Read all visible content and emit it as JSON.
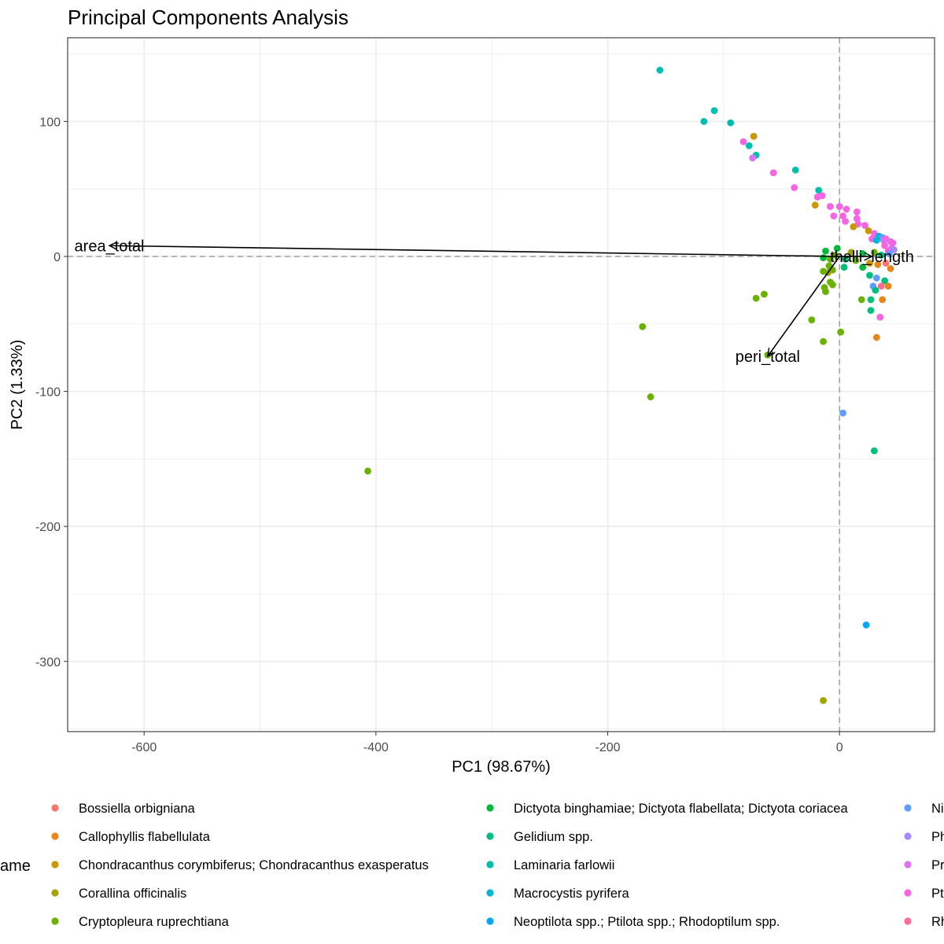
{
  "chart_data": {
    "type": "scatter",
    "title": "Principal Components Analysis",
    "xlabel": "PC1 (98.67%)",
    "ylabel": "PC2 (1.33%)",
    "xlim": [
      -666,
      82
    ],
    "ylim": [
      -352,
      162
    ],
    "xticks": [
      -600,
      -400,
      -200,
      0
    ],
    "yticks": [
      100,
      0,
      -100,
      -200,
      -300
    ],
    "grid": true,
    "reference_lines": {
      "x": 0,
      "y": 0,
      "style": "dashed"
    },
    "legend_title": "ame",
    "legend_position": "bottom",
    "legend": [
      {
        "name": "Bossiella orbigniana",
        "color": "#F8766D"
      },
      {
        "name": "Callophyllis flabellulata",
        "color": "#E7861B"
      },
      {
        "name": "Chondracanthus corymbiferus; Chondracanthus exasperatus",
        "color": "#C99800"
      },
      {
        "name": "Corallina officinalis",
        "color": "#A3A500"
      },
      {
        "name": "Cryptopleura ruprechtiana",
        "color": "#6BB100"
      },
      {
        "name": "Dictyota binghamiae; Dictyota flabellata; Dictyota coriacea",
        "color": "#00BA38"
      },
      {
        "name": "Gelidium spp.",
        "color": "#00BF7D"
      },
      {
        "name": "Laminaria farlowii",
        "color": "#00BFAE"
      },
      {
        "name": "Macrocystis pyrifera",
        "color": "#00B5D6"
      },
      {
        "name": "Neoptilota spp.; Ptilota spp.; Rhodoptilum spp.",
        "color": "#00A5FF"
      },
      {
        "name": "Ni",
        "color": "#619CFF"
      },
      {
        "name": "Ph",
        "color": "#A58AFF"
      },
      {
        "name": "Pr",
        "color": "#DF70F8"
      },
      {
        "name": "Pt",
        "color": "#F564E3"
      },
      {
        "name": "Rh",
        "color": "#FF6C91"
      }
    ],
    "loadings": [
      {
        "name": "area_total",
        "x": -630,
        "y": 8
      },
      {
        "name": "peri_total",
        "x": -62,
        "y": -74
      },
      {
        "name": "thalli_length",
        "x": 28,
        "y": 0
      }
    ],
    "points": [
      {
        "x": -155,
        "y": 138,
        "series": 7
      },
      {
        "x": -108,
        "y": 108,
        "series": 7
      },
      {
        "x": -117,
        "y": 100,
        "series": 7
      },
      {
        "x": -94,
        "y": 99,
        "series": 7
      },
      {
        "x": -74,
        "y": 89,
        "series": 2
      },
      {
        "x": -83,
        "y": 85,
        "series": 13
      },
      {
        "x": -78,
        "y": 82,
        "series": 7
      },
      {
        "x": -72,
        "y": 75,
        "series": 7
      },
      {
        "x": -75,
        "y": 73,
        "series": 12
      },
      {
        "x": -38,
        "y": 64,
        "series": 7
      },
      {
        "x": -57,
        "y": 62,
        "series": 13
      },
      {
        "x": -39,
        "y": 51,
        "series": 13
      },
      {
        "x": -18,
        "y": 49,
        "series": 7
      },
      {
        "x": -19,
        "y": 44,
        "series": 13
      },
      {
        "x": -15,
        "y": 45,
        "series": 13
      },
      {
        "x": -21,
        "y": 38,
        "series": 2
      },
      {
        "x": -8,
        "y": 37,
        "series": 13
      },
      {
        "x": 0,
        "y": 37,
        "series": 13
      },
      {
        "x": 6,
        "y": 35,
        "series": 13
      },
      {
        "x": 15,
        "y": 33,
        "series": 13
      },
      {
        "x": -5,
        "y": 30,
        "series": 13
      },
      {
        "x": 3,
        "y": 30,
        "series": 13
      },
      {
        "x": 15,
        "y": 28,
        "series": 13
      },
      {
        "x": 5,
        "y": 26,
        "series": 13
      },
      {
        "x": 16,
        "y": 24,
        "series": 13
      },
      {
        "x": 12,
        "y": 22,
        "series": 2
      },
      {
        "x": 22,
        "y": 23,
        "series": 13
      },
      {
        "x": 25,
        "y": 19,
        "series": 2
      },
      {
        "x": 30,
        "y": 17,
        "series": 13
      },
      {
        "x": 34,
        "y": 15,
        "series": 8
      },
      {
        "x": 37,
        "y": 14,
        "series": 10
      },
      {
        "x": 28,
        "y": 13,
        "series": 13
      },
      {
        "x": 32,
        "y": 12,
        "series": 8
      },
      {
        "x": 38,
        "y": 12,
        "series": 11
      },
      {
        "x": 40,
        "y": 13,
        "series": 13
      },
      {
        "x": 44,
        "y": 11,
        "series": 12
      },
      {
        "x": 46,
        "y": 10,
        "series": 13
      },
      {
        "x": 39,
        "y": 8,
        "series": 13
      },
      {
        "x": 45,
        "y": 6,
        "series": 13
      },
      {
        "x": 47,
        "y": 5,
        "series": 11
      },
      {
        "x": 42,
        "y": 4,
        "series": 13
      },
      {
        "x": 43,
        "y": 2,
        "series": 10
      },
      {
        "x": 36,
        "y": 1,
        "series": 6
      },
      {
        "x": 30,
        "y": 3,
        "series": 4
      },
      {
        "x": 20,
        "y": 2,
        "series": 5
      },
      {
        "x": 10,
        "y": 3,
        "series": 3
      },
      {
        "x": -4,
        "y": 1,
        "series": 4
      },
      {
        "x": -12,
        "y": 4,
        "series": 5
      },
      {
        "x": -2,
        "y": 6,
        "series": 5
      },
      {
        "x": -8,
        "y": -2,
        "series": 4
      },
      {
        "x": -14,
        "y": -1,
        "series": 5
      },
      {
        "x": 5,
        "y": -2,
        "series": 6
      },
      {
        "x": 14,
        "y": -3,
        "series": 4
      },
      {
        "x": 26,
        "y": -5,
        "series": 2
      },
      {
        "x": 33,
        "y": -6,
        "series": 1
      },
      {
        "x": 40,
        "y": -5,
        "series": 0
      },
      {
        "x": 44,
        "y": -9,
        "series": 1
      },
      {
        "x": 20,
        "y": -8,
        "series": 5
      },
      {
        "x": 4,
        "y": -8,
        "series": 6
      },
      {
        "x": -9,
        "y": -7,
        "series": 4
      },
      {
        "x": -6,
        "y": -10,
        "series": 4
      },
      {
        "x": -10,
        "y": -12,
        "series": 3
      },
      {
        "x": -14,
        "y": -11,
        "series": 4
      },
      {
        "x": -8,
        "y": -19,
        "series": 4
      },
      {
        "x": -6,
        "y": -21,
        "series": 4
      },
      {
        "x": -13,
        "y": -23,
        "series": 4
      },
      {
        "x": -12,
        "y": -26,
        "series": 4
      },
      {
        "x": 26,
        "y": -14,
        "series": 6
      },
      {
        "x": 32,
        "y": -16,
        "series": 10
      },
      {
        "x": 39,
        "y": -18,
        "series": 6
      },
      {
        "x": 29,
        "y": -22,
        "series": 10
      },
      {
        "x": 36,
        "y": -22,
        "series": 14
      },
      {
        "x": 42,
        "y": -22,
        "series": 1
      },
      {
        "x": 31,
        "y": -25,
        "series": 6
      },
      {
        "x": 19,
        "y": -32,
        "series": 4
      },
      {
        "x": 27,
        "y": -32,
        "series": 6
      },
      {
        "x": 37,
        "y": -32,
        "series": 1
      },
      {
        "x": 27,
        "y": -40,
        "series": 6
      },
      {
        "x": 35,
        "y": -45,
        "series": 13
      },
      {
        "x": -65,
        "y": -28,
        "series": 4
      },
      {
        "x": -72,
        "y": -31,
        "series": 4
      },
      {
        "x": -24,
        "y": -47,
        "series": 4
      },
      {
        "x": 1,
        "y": -56,
        "series": 4
      },
      {
        "x": -14,
        "y": -63,
        "series": 4
      },
      {
        "x": 32,
        "y": -60,
        "series": 1
      },
      {
        "x": -170,
        "y": -52,
        "series": 4
      },
      {
        "x": -62,
        "y": -73,
        "series": 4
      },
      {
        "x": -163,
        "y": -104,
        "series": 4
      },
      {
        "x": 3,
        "y": -116,
        "series": 10
      },
      {
        "x": 30,
        "y": -144,
        "series": 6
      },
      {
        "x": -407,
        "y": -159,
        "series": 4
      },
      {
        "x": 23,
        "y": -273,
        "series": 9
      },
      {
        "x": -14,
        "y": -329,
        "series": 3
      }
    ]
  }
}
